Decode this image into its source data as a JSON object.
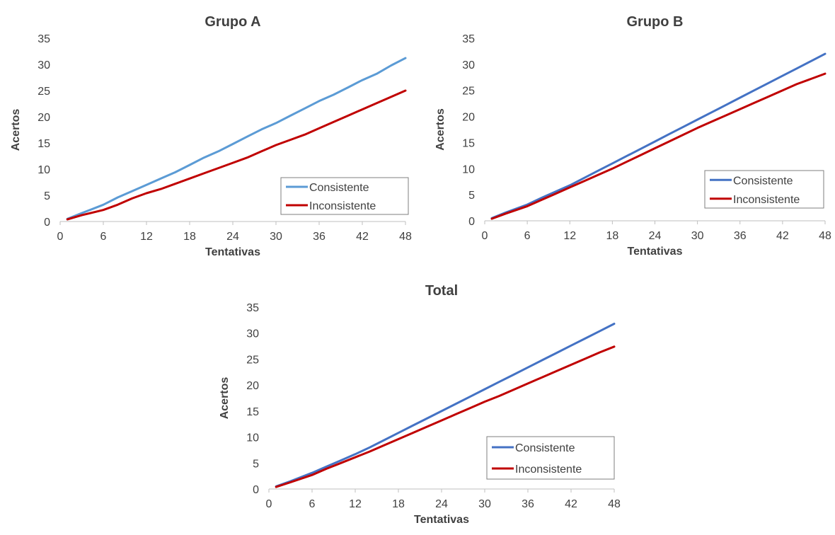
{
  "chart_data": [
    {
      "type": "line",
      "title": "Grupo A",
      "xlabel": "Tentativas",
      "ylabel": "Acertos",
      "xlim": [
        0,
        48
      ],
      "ylim": [
        0,
        35
      ],
      "xticks": [
        0,
        6,
        12,
        18,
        24,
        30,
        36,
        42,
        48
      ],
      "yticks": [
        0,
        5,
        10,
        15,
        20,
        25,
        30,
        35
      ],
      "grid": false,
      "legend_position": "bottom-right",
      "series": [
        {
          "name": "Consistente",
          "color": "#5b9bd5",
          "x": [
            1,
            3,
            6,
            8,
            10,
            12,
            14,
            16,
            18,
            20,
            22,
            24,
            26,
            28,
            30,
            32,
            34,
            36,
            38,
            40,
            42,
            44,
            46,
            48
          ],
          "y": [
            0.5,
            1.6,
            3.2,
            4.6,
            5.8,
            7.0,
            8.2,
            9.4,
            10.8,
            12.2,
            13.4,
            14.8,
            16.2,
            17.6,
            18.8,
            20.2,
            21.6,
            23.0,
            24.2,
            25.6,
            27.0,
            28.2,
            29.8,
            31.2
          ]
        },
        {
          "name": "Inconsistente",
          "color": "#c00000",
          "x": [
            1,
            3,
            6,
            8,
            10,
            12,
            14,
            16,
            18,
            20,
            22,
            24,
            26,
            28,
            30,
            32,
            34,
            36,
            38,
            40,
            42,
            44,
            46,
            48
          ],
          "y": [
            0.4,
            1.2,
            2.2,
            3.2,
            4.4,
            5.4,
            6.2,
            7.2,
            8.2,
            9.2,
            10.2,
            11.2,
            12.2,
            13.4,
            14.6,
            15.6,
            16.6,
            17.8,
            19.0,
            20.2,
            21.4,
            22.6,
            23.8,
            25.0
          ]
        }
      ]
    },
    {
      "type": "line",
      "title": "Grupo B",
      "xlabel": "Tentativas",
      "ylabel": "Acertos",
      "xlim": [
        0,
        48
      ],
      "ylim": [
        0,
        35
      ],
      "xticks": [
        0,
        6,
        12,
        18,
        24,
        30,
        36,
        42,
        48
      ],
      "yticks": [
        0,
        5,
        10,
        15,
        20,
        25,
        30,
        35
      ],
      "grid": false,
      "legend_position": "bottom-right",
      "series": [
        {
          "name": "Consistente",
          "color": "#4472c4",
          "x": [
            1,
            3,
            6,
            8,
            10,
            12,
            14,
            16,
            18,
            20,
            22,
            24,
            26,
            28,
            30,
            32,
            34,
            36,
            38,
            40,
            42,
            44,
            46,
            48
          ],
          "y": [
            0.5,
            1.6,
            3.1,
            4.4,
            5.6,
            6.8,
            8.2,
            9.6,
            11.0,
            12.4,
            13.8,
            15.2,
            16.6,
            18.0,
            19.4,
            20.8,
            22.2,
            23.6,
            25.0,
            26.4,
            27.8,
            29.2,
            30.6,
            32.0
          ]
        },
        {
          "name": "Inconsistente",
          "color": "#c00000",
          "x": [
            1,
            3,
            6,
            8,
            10,
            12,
            14,
            16,
            18,
            20,
            22,
            24,
            26,
            28,
            30,
            32,
            34,
            36,
            38,
            40,
            42,
            44,
            46,
            48
          ],
          "y": [
            0.4,
            1.4,
            2.8,
            4.0,
            5.2,
            6.4,
            7.6,
            8.8,
            10.0,
            11.3,
            12.6,
            13.9,
            15.2,
            16.5,
            17.8,
            19.0,
            20.2,
            21.4,
            22.6,
            23.8,
            25.0,
            26.2,
            27.2,
            28.2
          ]
        }
      ]
    },
    {
      "type": "line",
      "title": "Total",
      "xlabel": "Tentativas",
      "ylabel": "Acertos",
      "xlim": [
        0,
        48
      ],
      "ylim": [
        0,
        35
      ],
      "xticks": [
        0,
        6,
        12,
        18,
        24,
        30,
        36,
        42,
        48
      ],
      "yticks": [
        0,
        5,
        10,
        15,
        20,
        25,
        30,
        35
      ],
      "grid": false,
      "legend_position": "bottom-right",
      "series": [
        {
          "name": "Consistente",
          "color": "#4472c4",
          "x": [
            1,
            3,
            6,
            8,
            10,
            12,
            14,
            16,
            18,
            20,
            22,
            24,
            26,
            28,
            30,
            32,
            34,
            36,
            38,
            40,
            42,
            44,
            46,
            48
          ],
          "y": [
            0.5,
            1.5,
            3.1,
            4.3,
            5.5,
            6.7,
            8.0,
            9.4,
            10.8,
            12.2,
            13.6,
            15.0,
            16.4,
            17.8,
            19.2,
            20.6,
            22.0,
            23.4,
            24.8,
            26.2,
            27.6,
            29.0,
            30.4,
            31.8
          ]
        },
        {
          "name": "Inconsistente",
          "color": "#c00000",
          "x": [
            1,
            3,
            6,
            8,
            10,
            12,
            14,
            16,
            18,
            20,
            22,
            24,
            26,
            28,
            30,
            32,
            34,
            36,
            38,
            40,
            42,
            44,
            46,
            48
          ],
          "y": [
            0.4,
            1.3,
            2.7,
            3.9,
            5.0,
            6.1,
            7.2,
            8.4,
            9.6,
            10.8,
            12.0,
            13.2,
            14.4,
            15.6,
            16.8,
            17.9,
            19.1,
            20.3,
            21.5,
            22.7,
            23.9,
            25.1,
            26.3,
            27.4
          ]
        }
      ]
    }
  ]
}
